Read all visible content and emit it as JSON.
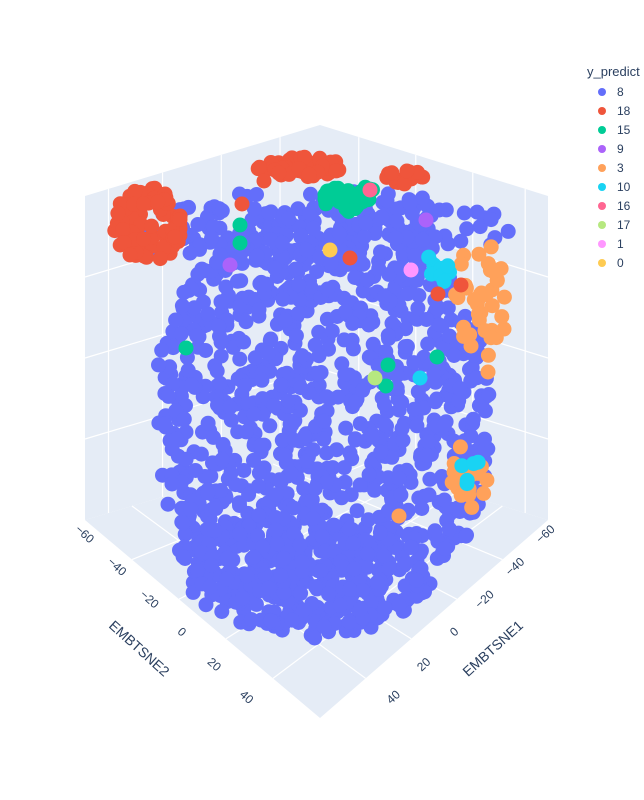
{
  "chart_data": {
    "type": "scatter3d",
    "title": "",
    "legend_title": "y_predict",
    "legend_placement": "top-right",
    "axes": {
      "x": {
        "title": "EMBTSNE1",
        "ticks": [
          "−60",
          "−40",
          "−20",
          "0",
          "20",
          "40"
        ]
      },
      "y": {
        "title": "EMBTSNE2",
        "ticks": [
          "−60",
          "−40",
          "−20",
          "0",
          "20",
          "40"
        ]
      },
      "z": {
        "title": "",
        "ticks": []
      }
    },
    "grid": true,
    "series": [
      {
        "name": "8",
        "color": "#636efa"
      },
      {
        "name": "18",
        "color": "#ef553b"
      },
      {
        "name": "15",
        "color": "#00cc96"
      },
      {
        "name": "9",
        "color": "#ab63fa"
      },
      {
        "name": "3",
        "color": "#ffa15a"
      },
      {
        "name": "10",
        "color": "#19d3f3"
      },
      {
        "name": "16",
        "color": "#ff6692"
      },
      {
        "name": "17",
        "color": "#b6e880"
      },
      {
        "name": "1",
        "color": "#ff97ff"
      },
      {
        "name": "0",
        "color": "#fecb52"
      }
    ]
  }
}
